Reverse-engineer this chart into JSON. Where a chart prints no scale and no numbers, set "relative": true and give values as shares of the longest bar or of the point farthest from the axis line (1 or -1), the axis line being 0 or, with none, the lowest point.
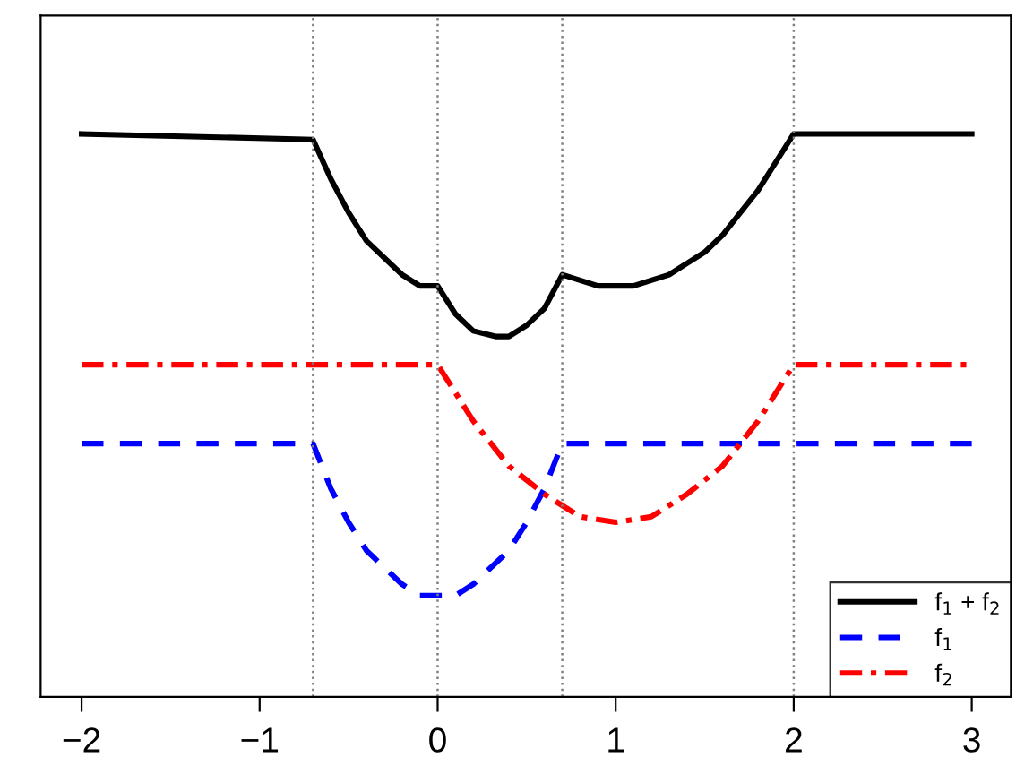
{
  "chart_data": {
    "type": "line",
    "relative": true,
    "series": [
      {
        "name": "f$_{1}$ + f$_{2}$",
        "color": "#000000",
        "line_style": "solid",
        "x": [
          -2,
          -0.7,
          -0.6,
          -0.5,
          -0.4,
          -0.3,
          -0.2,
          -0.1,
          0,
          0.1,
          0.2,
          0.33,
          0.4,
          0.5,
          0.6,
          0.7,
          0.8,
          0.9,
          1,
          1.1,
          1.2,
          1.3,
          1.4,
          1.5,
          1.6,
          1.7,
          1.8,
          1.9,
          2,
          3
        ],
        "values": [
          1,
          0.99,
          0.92,
          0.86,
          0.81,
          0.78,
          0.75,
          0.73,
          0.73,
          0.68,
          0.65,
          0.64,
          0.64,
          0.66,
          0.69,
          0.75,
          0.74,
          0.73,
          0.73,
          0.73,
          0.74,
          0.75,
          0.77,
          0.79,
          0.82,
          0.86,
          0.9,
          0.95,
          1,
          1
        ]
      },
      {
        "name": "f$_{1}$",
        "color": "#0000ff",
        "line_style": "dashed",
        "x": [
          -2,
          -0.7,
          -0.6,
          -0.5,
          -0.4,
          -0.3,
          -0.2,
          -0.1,
          0,
          0.1,
          0.2,
          0.3,
          0.4,
          0.5,
          0.6,
          0.7,
          3
        ],
        "values": [
          0.45,
          0.45,
          0.37,
          0.31,
          0.26,
          0.23,
          0.2,
          0.18,
          0.18,
          0.18,
          0.2,
          0.23,
          0.26,
          0.31,
          0.37,
          0.45,
          0.45
        ]
      },
      {
        "name": "f$_{2}$",
        "color": "#ff0000",
        "line_style": "dashdot",
        "x": [
          -2,
          0,
          0.2,
          0.4,
          0.6,
          0.8,
          1,
          1.2,
          1.4,
          1.6,
          1.8,
          2,
          3
        ],
        "values": [
          0.59,
          0.59,
          0.49,
          0.41,
          0.36,
          0.32,
          0.31,
          0.32,
          0.36,
          0.41,
          0.49,
          0.59,
          0.59
        ]
      }
    ],
    "xlim": [
      -2.23,
      3.22
    ],
    "xticks": [
      {
        "value": -2,
        "label": "−2"
      },
      {
        "value": -1,
        "label": "−1"
      },
      0,
      1,
      2,
      3
    ],
    "ref_lines": [
      {
        "axis": "x",
        "value": -0.7,
        "color": "#808080",
        "line_style": "dotted"
      },
      {
        "axis": "x",
        "value": 0,
        "color": "#808080",
        "line_style": "dotted"
      },
      {
        "axis": "x",
        "value": 0.7,
        "color": "#808080",
        "line_style": "dotted"
      },
      {
        "axis": "x",
        "value": 2,
        "color": "#808080",
        "line_style": "dotted"
      }
    ],
    "legend": "bottom right",
    "grid": false,
    "marker": "none"
  }
}
